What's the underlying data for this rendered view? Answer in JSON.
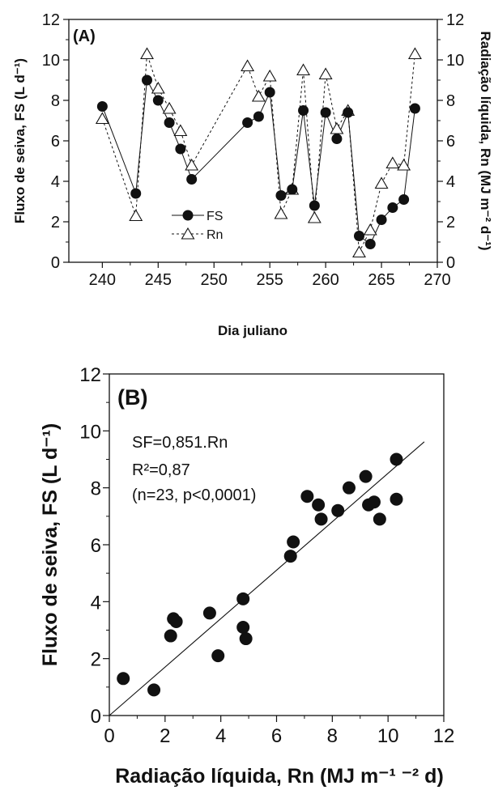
{
  "chart_data": [
    {
      "type": "line",
      "panel_label": "(A)",
      "xlabel": "Dia juliano",
      "ylabel": "Fluxo de seiva, FS (L d⁻¹)",
      "y2label": "Radiação líquida, Rn (MJ m⁻² d⁻¹)",
      "xlim": [
        237,
        270
      ],
      "ylim": [
        0,
        12
      ],
      "y2lim": [
        0,
        12
      ],
      "xticks": [
        "240",
        "245",
        "250",
        "255",
        "260",
        "265",
        "270"
      ],
      "yticks": [
        "0",
        "2",
        "4",
        "6",
        "8",
        "10",
        "12"
      ],
      "y2ticks": [
        "0",
        "2",
        "4",
        "6",
        "8",
        "10",
        "12"
      ],
      "legend_position": "bottom-left",
      "series": [
        {
          "name": "FS",
          "marker": "filled-circle",
          "line": "solid",
          "x": [
            240,
            243,
            244,
            245,
            246,
            247,
            248,
            253,
            254,
            255,
            256,
            257,
            258,
            259,
            260,
            261,
            262,
            263,
            264,
            265,
            266,
            267,
            268
          ],
          "values": [
            7.7,
            3.4,
            9.0,
            8.0,
            6.9,
            5.6,
            4.1,
            6.9,
            7.2,
            8.4,
            3.3,
            3.6,
            7.5,
            2.8,
            7.4,
            6.1,
            7.4,
            1.3,
            0.9,
            2.1,
            2.7,
            3.1,
            7.6
          ]
        },
        {
          "name": "Rn",
          "marker": "open-triangle",
          "line": "dashed",
          "x": [
            240,
            243,
            244,
            245,
            246,
            247,
            248,
            253,
            254,
            255,
            256,
            257,
            258,
            259,
            260,
            261,
            262,
            263,
            264,
            265,
            266,
            267,
            268
          ],
          "values": [
            7.1,
            2.3,
            10.3,
            8.6,
            7.6,
            6.5,
            4.8,
            9.7,
            8.2,
            9.2,
            2.4,
            3.6,
            9.5,
            2.2,
            9.3,
            6.6,
            7.5,
            0.5,
            1.6,
            3.9,
            4.9,
            4.8,
            10.3
          ]
        }
      ]
    },
    {
      "type": "scatter",
      "panel_label": "(B)",
      "xlabel": "Radiação líquida, Rn (MJ m⁻¹ ⁻² d)",
      "ylabel": "Fluxo de seiva, FS (L d⁻¹)",
      "xlim": [
        0,
        12
      ],
      "ylim": [
        0,
        12
      ],
      "xticks": [
        "0",
        "2",
        "4",
        "6",
        "8",
        "10",
        "12"
      ],
      "yticks": [
        "0",
        "2",
        "4",
        "6",
        "8",
        "10",
        "12"
      ],
      "annotations": [
        "SF=0,851.Rn",
        "R²=0,87",
        "(n=23, p<0,0001)"
      ],
      "fit": {
        "slope": 0.851,
        "intercept": 0,
        "x_range": [
          0,
          11.3
        ]
      },
      "series": [
        {
          "name": "",
          "marker": "filled-circle",
          "x": [
            0.5,
            1.6,
            2.2,
            2.3,
            2.4,
            3.6,
            3.9,
            4.8,
            4.8,
            4.9,
            6.5,
            6.6,
            7.1,
            7.5,
            7.6,
            8.2,
            8.6,
            9.2,
            9.3,
            9.5,
            9.7,
            10.3,
            10.3
          ],
          "values": [
            1.3,
            0.9,
            2.8,
            3.4,
            3.3,
            3.6,
            2.1,
            4.1,
            3.1,
            2.7,
            5.6,
            6.1,
            7.7,
            7.4,
            6.9,
            7.2,
            8.0,
            8.4,
            7.4,
            7.5,
            6.9,
            9.0,
            7.6
          ]
        }
      ]
    }
  ]
}
